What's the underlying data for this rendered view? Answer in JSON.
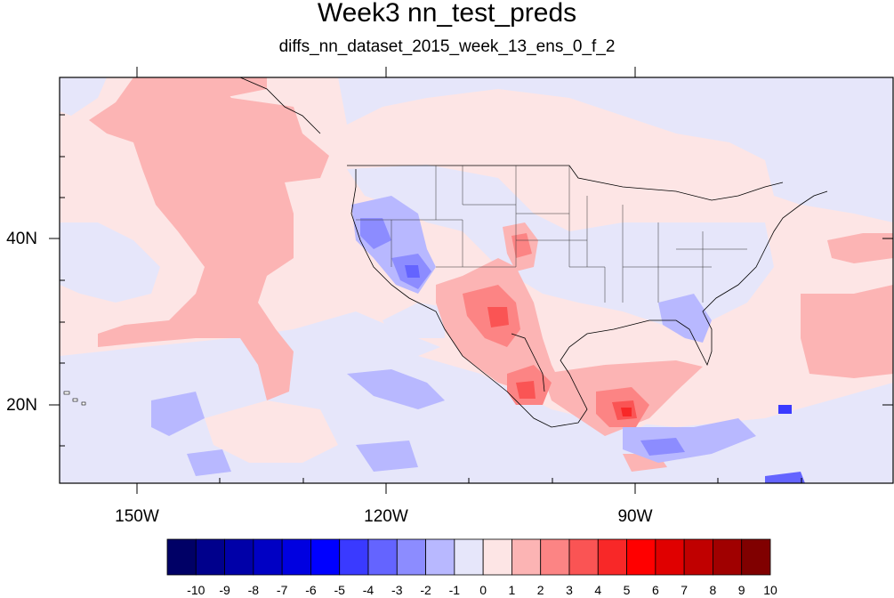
{
  "title": "Week3 nn_test_preds",
  "subtitle": "diffs_nn_dataset_2015_week_13_ens_0_f_2",
  "map": {
    "lon_labels": [
      "150W",
      "120W",
      "90W"
    ],
    "lat_labels": [
      "40N",
      "20N"
    ],
    "colors": {
      "neutral_neg": "#e6e6fa",
      "neutral_pos": "#fde5e5",
      "border": "#000000"
    }
  },
  "colorbar": {
    "labels": [
      "-10",
      "-9",
      "-8",
      "-7",
      "-6",
      "-5",
      "-4",
      "-3",
      "-2",
      "-1",
      "0",
      "1",
      "2",
      "3",
      "4",
      "5",
      "6",
      "7",
      "8",
      "9",
      "10"
    ],
    "colors": [
      "#000066",
      "#00008c",
      "#0000a8",
      "#0000c4",
      "#0000e0",
      "#0000ff",
      "#3a3aff",
      "#6464ff",
      "#8c8cff",
      "#b8b8ff",
      "#e6e6fa",
      "#fde5e5",
      "#fcb4b4",
      "#fc8484",
      "#fa5454",
      "#f82828",
      "#ff0000",
      "#e00000",
      "#c00000",
      "#a00000",
      "#800000"
    ]
  }
}
